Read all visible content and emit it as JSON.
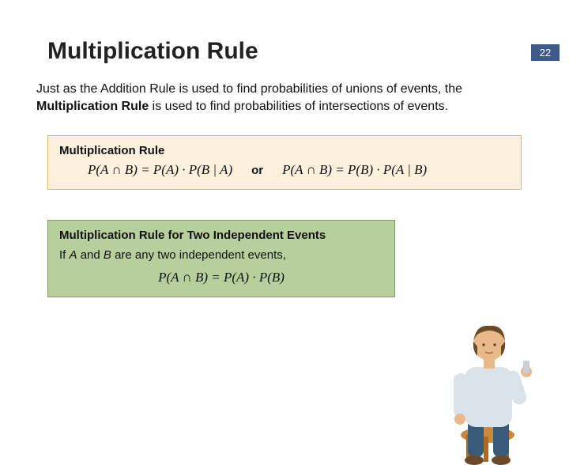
{
  "page_number": "22",
  "title": "Multiplication Rule",
  "intro_html": "Just as the Addition Rule is used to find probabilities of unions of events, the <span class=\"b\">Multiplication Rule</span> is used to find probabilities of intersections of events.",
  "box1": {
    "title": "Multiplication Rule",
    "formula_left": "P(A ∩ B) = P(A) · P(B | A)",
    "or": "or",
    "formula_right": "P(A ∩ B) = P(B) · P(A | B)",
    "bg": "#fdf0dc",
    "border": "#d7b97e"
  },
  "box2": {
    "title": "Multiplication Rule for Two Independent Events",
    "line_html": "If <span class=\"ab\">A</span> and <span class=\"ab\">B</span> are any two independent events,",
    "formula": "P(A ∩ B) = P(A) · P(B)",
    "bg": "#b6cf9d",
    "border": "#7ea05a"
  },
  "colors": {
    "page_number_bg": "#3d5a8a",
    "page_number_fg": "#ffffff"
  }
}
